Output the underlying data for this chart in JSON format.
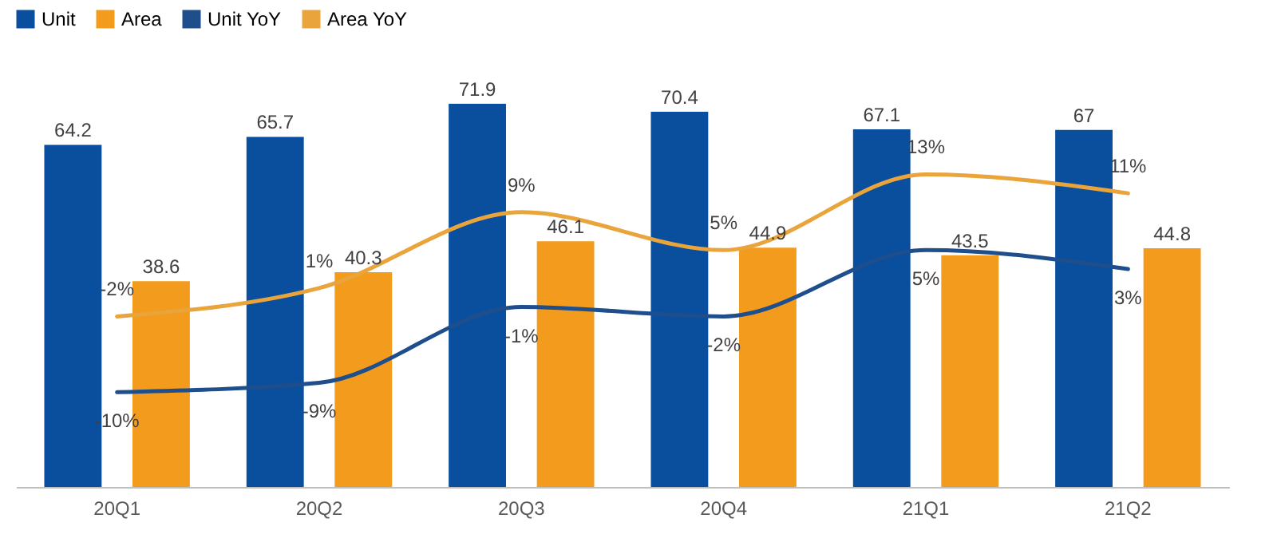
{
  "chart_data": {
    "type": "bar",
    "categories": [
      "20Q1",
      "20Q2",
      "20Q3",
      "20Q4",
      "21Q1",
      "21Q2"
    ],
    "tick_labels": "x",
    "legend": "top",
    "data_labels": true,
    "series": [
      {
        "name": "Unit",
        "color": "#0a4f9e",
        "values": [
          64.2,
          65.7,
          71.9,
          70.4,
          67.1,
          67
        ]
      },
      {
        "name": "Area",
        "color": "#f29b1d",
        "values": [
          38.6,
          40.3,
          46.1,
          44.9,
          43.5,
          44.8
        ]
      },
      {
        "name": "Unit YoY",
        "type": "line",
        "axis": "y2",
        "color": "#1f4e8c",
        "values": [
          -10,
          -9,
          -1,
          -2,
          5,
          3
        ],
        "value_labels": [
          "-10%",
          "-9%",
          "-1%",
          "-2%",
          "5%",
          "3%"
        ]
      },
      {
        "name": "Area YoY",
        "type": "line",
        "axis": "y2",
        "color": "#e9a43c",
        "values": [
          -2,
          1,
          9,
          5,
          13,
          11
        ],
        "value_labels": [
          "-2%",
          "1%",
          "9%",
          "5%",
          "13%",
          "11%"
        ]
      }
    ]
  }
}
